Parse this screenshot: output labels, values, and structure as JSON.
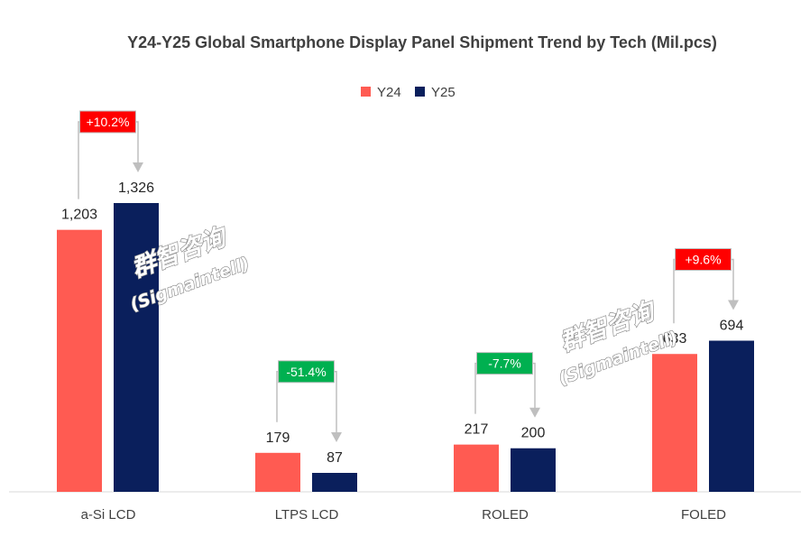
{
  "chart_data": {
    "type": "bar",
    "title": "Y24-Y25 Global Smartphone Display Panel Shipment Trend by Tech  (Mil.pcs)",
    "unit": "Mil.pcs",
    "categories": [
      "a-Si LCD",
      "LTPS LCD",
      "ROLED",
      "FOLED"
    ],
    "series": [
      {
        "name": "Y24",
        "color": "#FF5B52",
        "values": [
          1203,
          179,
          217,
          633
        ],
        "labels": [
          "1,203",
          "179",
          "217",
          "633"
        ]
      },
      {
        "name": "Y25",
        "color": "#0A1F5C",
        "values": [
          1326,
          87,
          200,
          694
        ],
        "labels": [
          "1,326",
          "87",
          "200",
          "694"
        ]
      }
    ],
    "ylim": [
      0,
      1326
    ],
    "grid": false,
    "legend_position": "top",
    "annotations": [
      {
        "category": "a-Si LCD",
        "text": "+10.2%",
        "color": "#FF0000"
      },
      {
        "category": "LTPS LCD",
        "text": "-51.4%",
        "color": "#00B050"
      },
      {
        "category": "ROLED",
        "text": "-7.7%",
        "color": "#00B050"
      },
      {
        "category": "FOLED",
        "text": "+9.6%",
        "color": "#FF0000"
      }
    ]
  },
  "watermark": {
    "chinese": "群智咨询",
    "english": "(Sigmaintell)"
  }
}
